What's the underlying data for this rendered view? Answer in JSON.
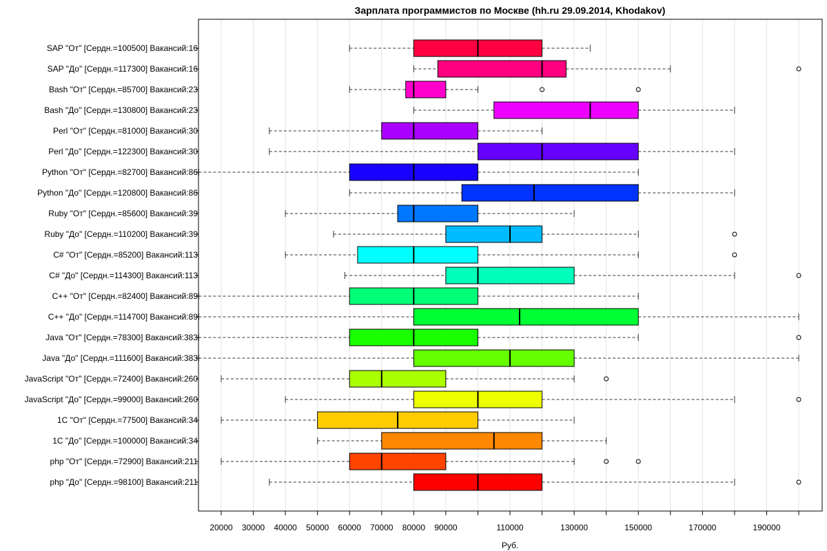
{
  "chart_data": {
    "type": "boxplot",
    "title": "Зарплата программистов по Москве (hh.ru 29.09.2014, Khodakov)",
    "xlabel": "Руб.",
    "ylabel": "",
    "xlim": [
      13000,
      207000
    ],
    "grid": true,
    "x_ticks": [
      20000,
      30000,
      40000,
      50000,
      60000,
      70000,
      80000,
      90000,
      110000,
      130000,
      150000,
      170000,
      190000
    ],
    "series": [
      {
        "label": "SAP \"От\" [Сердн.=100500] Вакансий:16",
        "color": "#ff0040",
        "whisker_low": 60000,
        "q1": 80000,
        "median": 100000,
        "q3": 120000,
        "whisker_high": 135000,
        "outliers": []
      },
      {
        "label": "SAP \"До\" [Сердн.=117300] Вакансий:16",
        "color": "#ff0080",
        "whisker_low": 80000,
        "q1": 87500,
        "median": 120000,
        "q3": 127500,
        "whisker_high": 160000,
        "outliers": [
          200000
        ]
      },
      {
        "label": "Bash \"От\" [Сердн.=85700] Вакансий:23",
        "color": "#ff00cc",
        "whisker_low": 60000,
        "q1": 77500,
        "median": 80000,
        "q3": 90000,
        "whisker_high": 100000,
        "outliers": [
          120000,
          150000
        ]
      },
      {
        "label": "Bash \"До\" [Сердн.=130800] Вакансий:23",
        "color": "#ee00ff",
        "whisker_low": 80000,
        "q1": 105000,
        "median": 135000,
        "q3": 150000,
        "whisker_high": 180000,
        "outliers": []
      },
      {
        "label": "Perl \"От\" [Сердн.=81000] Вакансий:30",
        "color": "#aa00ff",
        "whisker_low": 35000,
        "q1": 70000,
        "median": 80000,
        "q3": 100000,
        "whisker_high": 120000,
        "outliers": []
      },
      {
        "label": "Perl \"До\" [Сердн.=122300] Вакансий:30",
        "color": "#6600ff",
        "whisker_low": 35000,
        "q1": 100000,
        "median": 120000,
        "q3": 150000,
        "whisker_high": 180000,
        "outliers": []
      },
      {
        "label": "Python \"От\" [Сердн.=82700] Вакансий:86",
        "color": "#1a00ff",
        "whisker_low": 13000,
        "q1": 60000,
        "median": 80000,
        "q3": 100000,
        "whisker_high": 150000,
        "outliers": []
      },
      {
        "label": "Python \"До\" [Сердн.=120800] Вакансий:86",
        "color": "#0033ff",
        "whisker_low": 60000,
        "q1": 95000,
        "median": 117500,
        "q3": 150000,
        "whisker_high": 180000,
        "outliers": []
      },
      {
        "label": "Ruby \"От\" [Сердн.=85600] Вакансий:39",
        "color": "#0077ff",
        "whisker_low": 40000,
        "q1": 75000,
        "median": 80000,
        "q3": 100000,
        "whisker_high": 130000,
        "outliers": []
      },
      {
        "label": "Ruby \"До\" [Сердн.=110200] Вакансий:39",
        "color": "#00bbff",
        "whisker_low": 55000,
        "q1": 90000,
        "median": 110000,
        "q3": 120000,
        "whisker_high": 150000,
        "outliers": [
          180000
        ]
      },
      {
        "label": "C# \"От\" [Сердн.=85200] Вакансий:113",
        "color": "#00ffff",
        "whisker_low": 40000,
        "q1": 62500,
        "median": 80000,
        "q3": 100000,
        "whisker_high": 150000,
        "outliers": [
          180000
        ]
      },
      {
        "label": "C# \"До\" [Сердн.=114300] Вакансий:113",
        "color": "#00ffbb",
        "whisker_low": 58500,
        "q1": 90000,
        "median": 100000,
        "q3": 130000,
        "whisker_high": 180000,
        "outliers": [
          200000
        ]
      },
      {
        "label": "C++ \"От\" [Сердн.=82400] Вакансий:89",
        "color": "#00ff77",
        "whisker_low": 13000,
        "q1": 60000,
        "median": 80000,
        "q3": 100000,
        "whisker_high": 150000,
        "outliers": []
      },
      {
        "label": "C++ \"До\" [Сердн.=114700] Вакансий:89",
        "color": "#00ff33",
        "whisker_low": 13000,
        "q1": 80000,
        "median": 113000,
        "q3": 150000,
        "whisker_high": 200000,
        "outliers": []
      },
      {
        "label": "Java \"От\" [Сердн.=78300] Вакансий:383",
        "color": "#1aff00",
        "whisker_low": 13000,
        "q1": 60000,
        "median": 80000,
        "q3": 100000,
        "whisker_high": 150000,
        "outliers": [
          200000
        ]
      },
      {
        "label": "Java \"До\" [Сердн.=111600] Вакансий:383",
        "color": "#66ff00",
        "whisker_low": 13000,
        "q1": 80000,
        "median": 110000,
        "q3": 130000,
        "whisker_high": 200000,
        "outliers": []
      },
      {
        "label": "JavaScript \"От\" [Сердн.=72400] Вакансий:260",
        "color": "#aaff00",
        "whisker_low": 20000,
        "q1": 60000,
        "median": 70000,
        "q3": 90000,
        "whisker_high": 130000,
        "outliers": [
          140000
        ]
      },
      {
        "label": "JavaScript \"До\" [Сердн.=99000] Вакансий:260",
        "color": "#eeff00",
        "whisker_low": 40000,
        "q1": 80000,
        "median": 100000,
        "q3": 120000,
        "whisker_high": 180000,
        "outliers": [
          200000
        ]
      },
      {
        "label": "1C \"От\" [Сердн.=77500] Вакансий:34",
        "color": "#ffcc00",
        "whisker_low": 20000,
        "q1": 50000,
        "median": 75000,
        "q3": 100000,
        "whisker_high": 130000,
        "outliers": []
      },
      {
        "label": "1C \"До\" [Сердн.=100000] Вакансий:34",
        "color": "#ff8800",
        "whisker_low": 50000,
        "q1": 70000,
        "median": 105000,
        "q3": 120000,
        "whisker_high": 140000,
        "outliers": []
      },
      {
        "label": "php \"От\" [Сердн.=72900] Вакансий:211",
        "color": "#ff4400",
        "whisker_low": 20000,
        "q1": 60000,
        "median": 70000,
        "q3": 90000,
        "whisker_high": 130000,
        "outliers": [
          140000,
          150000
        ]
      },
      {
        "label": "php \"До\" [Сердн.=98100] Вакансий:211",
        "color": "#ff0000",
        "whisker_low": 35000,
        "q1": 80000,
        "median": 100000,
        "q3": 120000,
        "whisker_high": 180000,
        "outliers": [
          200000
        ]
      }
    ]
  }
}
